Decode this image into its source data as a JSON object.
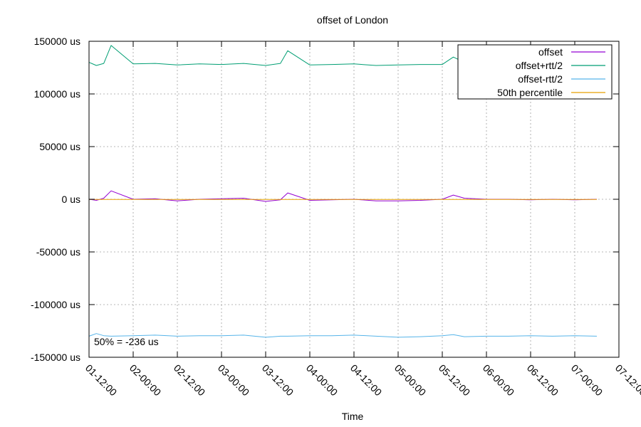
{
  "chart_data": {
    "type": "line",
    "title": "offset of London",
    "xlabel": "Time",
    "ylabel": "",
    "y_unit_suffix": " us",
    "ylim": [
      -150000,
      150000
    ],
    "yticks": [
      150000,
      100000,
      50000,
      0,
      -50000,
      -100000,
      -150000
    ],
    "ytick_labels": [
      "150000 us",
      "100000 us",
      "50000 us",
      "0 us",
      "-50000 us",
      "-100000 us",
      "-150000 us"
    ],
    "xlim": [
      "01-12:00",
      "07-12:00"
    ],
    "xtick_labels": [
      "01-12:00",
      "02-00:00",
      "02-12:00",
      "03-00:00",
      "03-12:00",
      "04-00:00",
      "04-12:00",
      "05-00:00",
      "05-12:00",
      "06-00:00",
      "06-12:00",
      "07-00:00",
      "07-12:00"
    ],
    "grid": true,
    "legend_position": "top-right",
    "annotation": "50% = -236 us",
    "series": [
      {
        "name": "offset",
        "color": "#9400d3",
        "x": [
          "01-12:00",
          "01-14:00",
          "01-16:00",
          "01-18:00",
          "02-00:00",
          "02-06:00",
          "02-12:00",
          "02-18:00",
          "03-00:00",
          "03-06:00",
          "03-12:00",
          "03-16:00",
          "03-18:00",
          "04-00:00",
          "04-06:00",
          "04-12:00",
          "04-18:00",
          "05-00:00",
          "05-06:00",
          "05-12:00",
          "05-15:00",
          "05-18:00",
          "06-00:00",
          "06-06:00",
          "06-12:00",
          "06-18:00",
          "07-00:00",
          "07-06:00"
        ],
        "y": [
          0,
          -1000,
          1000,
          8000,
          0,
          500,
          -1500,
          0,
          500,
          1000,
          -2000,
          -500,
          6000,
          -1000,
          -500,
          0,
          -1500,
          -1500,
          -1000,
          0,
          4000,
          1000,
          0,
          0,
          -500,
          0,
          -500,
          0
        ]
      },
      {
        "name": "offset+rtt/2",
        "color": "#009e73",
        "x": [
          "01-12:00",
          "01-14:00",
          "01-16:00",
          "01-18:00",
          "02-00:00",
          "02-06:00",
          "02-12:00",
          "02-18:00",
          "03-00:00",
          "03-06:00",
          "03-12:00",
          "03-16:00",
          "03-18:00",
          "04-00:00",
          "04-06:00",
          "04-12:00",
          "04-18:00",
          "05-00:00",
          "05-06:00",
          "05-12:00",
          "05-15:00",
          "05-18:00",
          "06-00:00",
          "06-06:00",
          "06-12:00",
          "06-18:00",
          "07-00:00",
          "07-06:00"
        ],
        "y": [
          130000,
          127000,
          129000,
          146000,
          128500,
          129000,
          127500,
          128500,
          128000,
          129000,
          127000,
          129000,
          141000,
          127500,
          128000,
          128500,
          127000,
          127500,
          128000,
          128000,
          135000,
          130000,
          128500,
          128000,
          128000,
          128500,
          128000,
          128500
        ]
      },
      {
        "name": "offset-rtt/2",
        "color": "#56b4e9",
        "x": [
          "01-12:00",
          "01-14:00",
          "01-16:00",
          "01-18:00",
          "02-00:00",
          "02-06:00",
          "02-12:00",
          "02-18:00",
          "03-00:00",
          "03-06:00",
          "03-12:00",
          "03-16:00",
          "03-18:00",
          "04-00:00",
          "04-06:00",
          "04-12:00",
          "04-18:00",
          "05-00:00",
          "05-06:00",
          "05-12:00",
          "05-15:00",
          "05-18:00",
          "06-00:00",
          "06-06:00",
          "06-12:00",
          "06-18:00",
          "07-00:00",
          "07-06:00"
        ],
        "y": [
          -130000,
          -127500,
          -129500,
          -130000,
          -129500,
          -129000,
          -130000,
          -129500,
          -129500,
          -129000,
          -131000,
          -130000,
          -130000,
          -129500,
          -129500,
          -129000,
          -130000,
          -131000,
          -130500,
          -129500,
          -128500,
          -130500,
          -130000,
          -130000,
          -129500,
          -130000,
          -129500,
          -130000
        ]
      },
      {
        "name": "50th percentile",
        "color": "#e69f00",
        "x": [
          "01-12:00",
          "07-06:00"
        ],
        "y": [
          -236,
          -236
        ]
      }
    ]
  }
}
